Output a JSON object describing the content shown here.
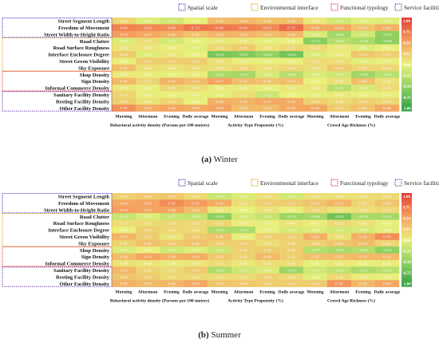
{
  "colors": {
    "scale": [
      "#2e9e44",
      "#8ccf5f",
      "#e9f07c",
      "#f5a05f",
      "#e23a34"
    ],
    "legend_box_colors": [
      "#3c3cc8",
      "#e0a21a",
      "#e03a3a",
      "#6a3dab"
    ]
  },
  "chart_data": [
    {
      "type": "heatmap",
      "caption_letter": "(a)",
      "caption_text": "Winter",
      "legend": [
        "Spatial scale",
        "Environmental interface",
        "Functional typology",
        "Service facilities"
      ],
      "rows": [
        "Street Segment Length",
        "Freedom of Movement",
        "Street Width-to-Height Ratio",
        "Road Clutter",
        "Road Surface Roughness",
        "Interface Enclosure Degree",
        "Street Green Visibility",
        "Sky Exposure",
        "Shop Density",
        "Sign Density",
        "Informal Commerce Density",
        "Sanitary Facility Density",
        "Resting Facility Density",
        "Other Facility Density"
      ],
      "row_groups": [
        3,
        5,
        3,
        3
      ],
      "columns": [
        "Morning",
        "Afternoon",
        "Evening",
        "Daily average",
        "Morning",
        "Afternoon",
        "Evening",
        "Daily average",
        "Morning",
        "Afternoon",
        "Evening",
        "Daily average"
      ],
      "column_groups": [
        "Behavioral activity density (Persons per 100 meters)",
        "Activity Type Propensity (%)",
        "Crowd Age Richness (%)"
      ],
      "values": [
        [
          0.16,
          -0.062,
          -0.127,
          -0.013,
          0.327,
          0.344,
          0.29,
          0.305,
          0.05,
          -0.137,
          -0.036,
          -0.053
        ],
        [
          0.641,
          0.612,
          0.603,
          0.712,
          0.683,
          0.659,
          0.612,
          0.755,
          0.436,
          0.443,
          0.274,
          0.391
        ],
        [
          0.51,
          0.457,
          0.4,
          0.286,
          0.37,
          0.376,
          0.317,
          0.356,
          -0.092,
          -0.384,
          -0.127,
          -0.47
        ],
        [
          -0.08,
          0.125,
          -0.115,
          -0.003,
          0.057,
          0.047,
          -0.02,
          0.001,
          -0.514,
          -0.269,
          -0.338,
          -0.488
        ],
        [
          0.074,
          0.068,
          0.023,
          -0.051,
          0.154,
          0.229,
          0.084,
          0.156,
          0.122,
          0.053,
          -0.065,
          0.001
        ],
        [
          0.24,
          -0.061,
          0.057,
          0.001,
          -0.595,
          -0.555,
          -0.449,
          -0.614,
          -0.087,
          0.022,
          0.271,
          0.211
        ],
        [
          0.01,
          0.222,
          0.224,
          0.218,
          0.091,
          0.017,
          0.001,
          0.015,
          0.136,
          0.12,
          -0.051,
          0.017
        ],
        [
          0.311,
          0.11,
          0.081,
          0.133,
          0.11,
          0.158,
          0.104,
          0.162,
          0.11,
          0.235,
          0.167,
          0.158
        ],
        [
          0.04,
          0.03,
          -0.029,
          0.032,
          -0.335,
          -0.367,
          -0.097,
          -0.269,
          -0.096,
          -0.146,
          -0.388,
          -0.262
        ],
        [
          0.345,
          0.175,
          0.396,
          0.317,
          0.477,
          0.311,
          0.28,
          0.313,
          0.001,
          0.099,
          0.303,
          0.096
        ],
        [
          0.063,
          0.01,
          0.156,
          0.119,
          0.03,
          0.038,
          0.004,
          0.056,
          0.066,
          -0.271,
          -0.104,
          0.131
        ],
        [
          0.179,
          0.016,
          -0.01,
          0.013,
          -0.033,
          0.113,
          -0.162,
          0.001,
          -0.021,
          0.038,
          0.005,
          0.016
        ],
        [
          0.22,
          0.09,
          0.173,
          0.004,
          0.39,
          0.383,
          0.447,
          0.43,
          0.202,
          0.138,
          0.199,
          0.158
        ],
        [
          0.587,
          0.427,
          0.461,
          0.43,
          0.476,
          0.318,
          0.323,
          0.443,
          0.456,
          0.231,
          0.282,
          0.446
        ]
      ],
      "colorbar_ticks": [
        "1.00",
        "0.75",
        "0.50",
        "0.25",
        "0.00",
        "-0.25",
        "-0.50",
        "-0.75",
        "-1.00"
      ],
      "vrange": [
        -1,
        1
      ]
    },
    {
      "type": "heatmap",
      "caption_letter": "(b)",
      "caption_text": "Summer",
      "legend": [
        "Spatial scale",
        "Environmental interface",
        "Functional typology",
        "Service facilities"
      ],
      "rows": [
        "Street Segment Length",
        "Freedom of Movement",
        "Street Width-to-Height Ratio",
        "Road Clutter",
        "Road Surface Roughness",
        "Interface Enclosure Degree",
        "Street Green Visibility",
        "Sky Exposure",
        "Shop Density",
        "Sign Density",
        "Informal Commerce Density",
        "Sanitary Facility Density",
        "Resting Facility Density",
        "Other Facility Density"
      ],
      "row_groups": [
        3,
        5,
        3,
        3
      ],
      "columns": [
        "Morning",
        "Afternoon",
        "Evening",
        "Daily average",
        "Morning",
        "Afternoon",
        "Evening",
        "Daily average",
        "Morning",
        "Afternoon",
        "Evening",
        "Daily average"
      ],
      "column_groups": [
        "Behavioral activity density (Persons per 100 meters)",
        "Activity Type Propensity (%)",
        "Crowd Age Richness (%)"
      ],
      "values": [
        [
          0.199,
          0.259,
          0.253,
          0.141,
          -0.169,
          -0.077,
          0.111,
          -0.118,
          0.106,
          0.098,
          0.11,
          0.142
        ],
        [
          0.458,
          0.475,
          0.591,
          0.521,
          0.426,
          0.122,
          0.212,
          0.237,
          0.274,
          0.372,
          0.167,
          0.264
        ],
        [
          0.51,
          0.471,
          0.468,
          0.323,
          0.059,
          0.001,
          0.081,
          0.011,
          0.159,
          0.079,
          0.104,
          0.147
        ],
        [
          -0.183,
          -0.075,
          -0.177,
          -0.202,
          -0.492,
          -0.124,
          -0.201,
          -0.414,
          -0.366,
          -0.623,
          -0.339,
          -0.361
        ],
        [
          0.127,
          0.132,
          0.16,
          0.15,
          0.165,
          0.03,
          0.019,
          0.08,
          0.032,
          0.129,
          0.09,
          -0.016
        ],
        [
          -0.001,
          0.203,
          0.153,
          0.132,
          -0.31,
          -0.323,
          0.001,
          -0.103,
          -0.063,
          -0.121,
          -0.099,
          -0.032
        ],
        [
          0.376,
          0.217,
          0.081,
          0.237,
          0.286,
          0.011,
          0.2,
          0.211,
          0.402,
          0.097,
          0.392,
          0.587
        ],
        [
          0.187,
          0.306,
          0.242,
          0.289,
          0.21,
          0.213,
          0.115,
          0.19,
          0.2,
          0.262,
          0.313,
          0.166
        ],
        [
          -0.074,
          0.009,
          -0.127,
          -0.064,
          -0.151,
          0.195,
          0.226,
          0.205,
          -0.277,
          -0.338,
          -0.285,
          -0.476
        ],
        [
          0.33,
          0.479,
          0.398,
          0.428,
          0.253,
          0.184,
          0.33,
          0.22,
          0.297,
          0.321,
          0.356,
          0.342
        ],
        [
          0.088,
          0.069,
          0.04,
          0.076,
          0.131,
          0.055,
          0.113,
          0.116,
          -0.011,
          0.053,
          0.013,
          0.032
        ],
        [
          0.359,
          0.181,
          0.139,
          0.243,
          -0.309,
          -0.152,
          -0.069,
          -0.404,
          -0.142,
          -0.22,
          -0.335,
          -0.256
        ],
        [
          0.262,
          0.226,
          0.151,
          0.148,
          0.125,
          0.123,
          0.2,
          0.148,
          -0.048,
          0.148,
          0.052,
          0.016
        ],
        [
          0.382,
          0.338,
          0.362,
          0.45,
          0.273,
          0.249,
          0.228,
          0.227,
          0.229,
          0.547,
          0.355,
          0.463
        ]
      ],
      "colorbar_ticks": [
        "1.00",
        "0.75",
        "0.50",
        "0.25",
        "0.00",
        "-0.25",
        "-0.50",
        "-0.75",
        "-1.00"
      ],
      "vrange": [
        -1,
        1
      ]
    }
  ]
}
